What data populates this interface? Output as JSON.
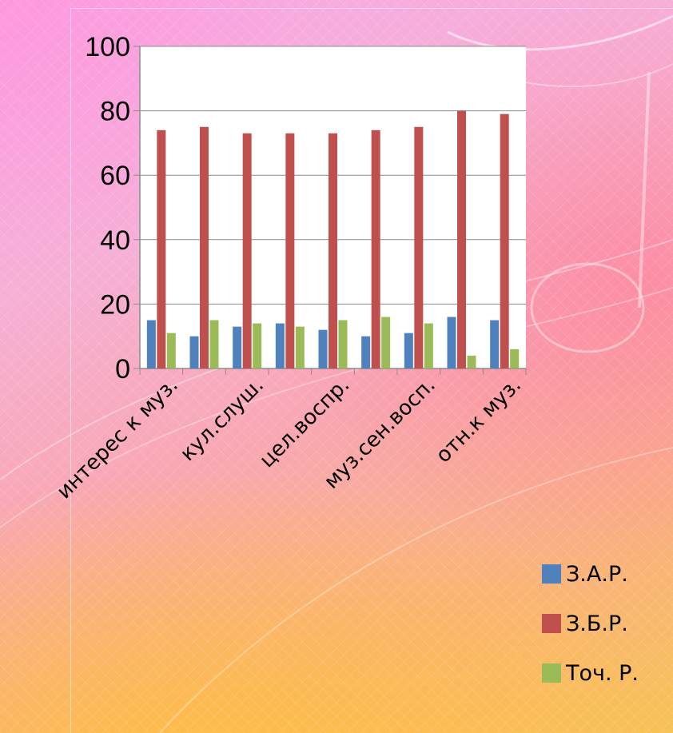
{
  "chart_data": {
    "type": "bar",
    "title": "",
    "xlabel": "",
    "ylabel": "",
    "categories": [
      "интерес к муз.",
      "",
      "кул.слуш.",
      "",
      "цел.воспр.",
      "",
      "муз.сен.восп.",
      "",
      "отн.к муз."
    ],
    "series": [
      {
        "name": "З.А.Р.",
        "color": "#4f81bd",
        "values": [
          15,
          10,
          13,
          14,
          12,
          10,
          11,
          16,
          15
        ]
      },
      {
        "name": "З.Б.Р.",
        "color": "#c0504d",
        "values": [
          74,
          75,
          73,
          73,
          73,
          74,
          75,
          80,
          79
        ]
      },
      {
        "name": "Точ. Р.",
        "color": "#9bbb59",
        "values": [
          11,
          15,
          14,
          13,
          15,
          16,
          14,
          4,
          6
        ]
      }
    ],
    "ylim": [
      0,
      100
    ],
    "yticks": [
      0,
      20,
      40,
      60,
      80,
      100
    ],
    "grid": true,
    "legend_position": "bottom-right",
    "plot_background": "#ffffff"
  }
}
